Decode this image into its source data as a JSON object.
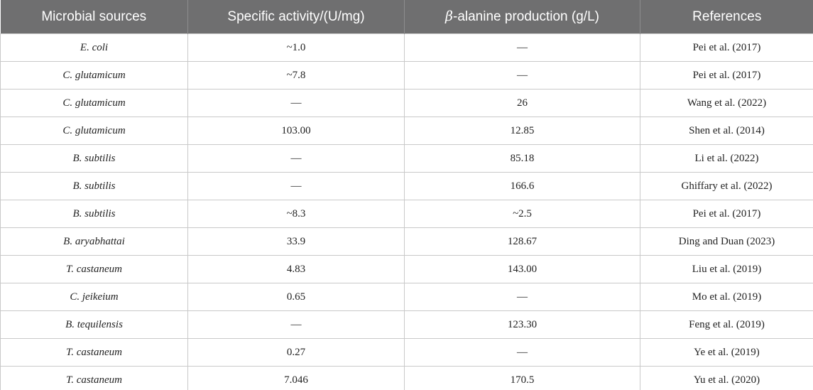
{
  "table": {
    "headers": {
      "source": "Microbial sources",
      "activity": "Specific activity/(U/mg)",
      "production_symbol": "β",
      "production_rest": "-alanine production (g/L)",
      "references": "References"
    },
    "rows": [
      {
        "source": "E. coli",
        "activity": "~1.0",
        "production": "—",
        "reference": "Pei et al. (2017)"
      },
      {
        "source": "C. glutamicum",
        "activity": "~7.8",
        "production": "—",
        "reference": "Pei et al. (2017)"
      },
      {
        "source": "C. glutamicum",
        "activity": "—",
        "production": "26",
        "reference": "Wang et al. (2022)"
      },
      {
        "source": "C. glutamicum",
        "activity": "103.00",
        "production": "12.85",
        "reference": "Shen et al. (2014)"
      },
      {
        "source": "B. subtilis",
        "activity": "—",
        "production": "85.18",
        "reference": "Li et al. (2022)"
      },
      {
        "source": "B. subtilis",
        "activity": "—",
        "production": "166.6",
        "reference": "Ghiffary et al. (2022)"
      },
      {
        "source": "B. subtilis",
        "activity": "~8.3",
        "production": "~2.5",
        "reference": "Pei et al. (2017)"
      },
      {
        "source": "B. aryabhattai",
        "activity": "33.9",
        "production": "128.67",
        "reference": "Ding and Duan (2023)"
      },
      {
        "source": "T. castaneum",
        "activity": "4.83",
        "production": "143.00",
        "reference": "Liu et al. (2019)"
      },
      {
        "source": "C. jeikeium",
        "activity": "0.65",
        "production": "—",
        "reference": "Mo et al. (2019)"
      },
      {
        "source": "B. tequilensis",
        "activity": "—",
        "production": "123.30",
        "reference": "Feng et al. (2019)"
      },
      {
        "source": "T. castaneum",
        "activity": "0.27",
        "production": "—",
        "reference": "Ye et al. (2019)"
      },
      {
        "source": "T. castaneum",
        "activity": "7.046",
        "production": "170.5",
        "reference": "Yu et al. (2020)"
      }
    ]
  }
}
